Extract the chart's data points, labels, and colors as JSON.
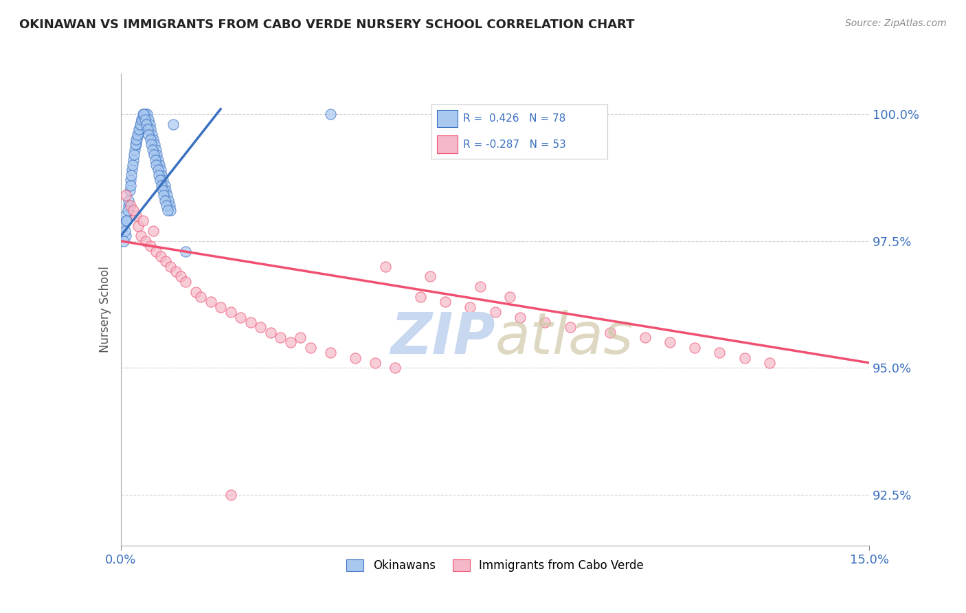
{
  "title": "OKINAWAN VS IMMIGRANTS FROM CABO VERDE NURSERY SCHOOL CORRELATION CHART",
  "source": "Source: ZipAtlas.com",
  "xlabel_okinawan": "Okinawans",
  "xlabel_cabo": "Immigrants from Cabo Verde",
  "ylabel": "Nursery School",
  "xlim": [
    0.0,
    15.0
  ],
  "ylim": [
    91.5,
    100.8
  ],
  "yticks": [
    92.5,
    95.0,
    97.5,
    100.0
  ],
  "r_okinawan": 0.426,
  "n_okinawan": 78,
  "r_cabo": -0.287,
  "n_cabo": 53,
  "color_okinawan": "#A8C8F0",
  "color_cabo": "#F5B8C8",
  "trend_color_okinawan": "#3A70C0",
  "trend_color_cabo": "#F05070",
  "background_color": "#FFFFFF",
  "grid_color": "#CCCCCC",
  "title_color": "#222222",
  "axis_label_color": "#555555",
  "legend_text_color": "#3A70C0",
  "watermark_color": "#C8D8F0",
  "okinawan_x": [
    0.05,
    0.08,
    0.1,
    0.12,
    0.15,
    0.18,
    0.2,
    0.22,
    0.25,
    0.28,
    0.3,
    0.32,
    0.35,
    0.38,
    0.4,
    0.42,
    0.45,
    0.48,
    0.5,
    0.52,
    0.55,
    0.58,
    0.6,
    0.62,
    0.65,
    0.68,
    0.7,
    0.72,
    0.75,
    0.78,
    0.8,
    0.82,
    0.85,
    0.88,
    0.9,
    0.92,
    0.95,
    0.98,
    1.0,
    1.05,
    0.06,
    0.09,
    0.11,
    0.14,
    0.16,
    0.19,
    0.21,
    0.24,
    0.26,
    0.29,
    0.31,
    0.34,
    0.36,
    0.39,
    0.41,
    0.44,
    0.46,
    0.49,
    0.51,
    0.54,
    0.56,
    0.59,
    0.61,
    0.64,
    0.66,
    0.69,
    0.71,
    0.74,
    0.76,
    0.79,
    0.81,
    0.84,
    0.86,
    0.89,
    0.91,
    0.94,
    4.2,
    1.3
  ],
  "okinawan_y": [
    97.8,
    98.0,
    97.6,
    97.9,
    98.2,
    98.5,
    98.7,
    98.9,
    99.1,
    99.3,
    99.4,
    99.5,
    99.6,
    99.7,
    99.8,
    99.9,
    99.9,
    100.0,
    100.0,
    100.0,
    99.9,
    99.8,
    99.7,
    99.6,
    99.5,
    99.4,
    99.3,
    99.2,
    99.1,
    99.0,
    98.9,
    98.8,
    98.7,
    98.6,
    98.5,
    98.4,
    98.3,
    98.2,
    98.1,
    99.8,
    97.5,
    97.7,
    97.9,
    98.1,
    98.3,
    98.6,
    98.8,
    99.0,
    99.2,
    99.4,
    99.5,
    99.6,
    99.7,
    99.8,
    99.9,
    100.0,
    100.0,
    99.9,
    99.8,
    99.7,
    99.6,
    99.5,
    99.4,
    99.3,
    99.2,
    99.1,
    99.0,
    98.9,
    98.8,
    98.7,
    98.6,
    98.5,
    98.4,
    98.3,
    98.2,
    98.1,
    100.0,
    97.3
  ],
  "cabo_x": [
    0.1,
    0.2,
    0.3,
    0.35,
    0.4,
    0.5,
    0.6,
    0.7,
    0.8,
    0.9,
    1.0,
    1.1,
    1.2,
    1.3,
    1.5,
    1.6,
    1.8,
    2.0,
    2.2,
    2.4,
    2.6,
    2.8,
    3.0,
    3.2,
    3.4,
    3.8,
    4.2,
    4.7,
    5.1,
    5.5,
    6.0,
    6.5,
    7.0,
    7.5,
    8.0,
    8.5,
    9.0,
    9.8,
    10.5,
    11.0,
    11.5,
    12.0,
    12.5,
    13.0,
    5.3,
    6.2,
    7.2,
    7.8,
    0.25,
    0.45,
    0.65,
    3.6,
    2.2
  ],
  "cabo_y": [
    98.4,
    98.2,
    98.0,
    97.8,
    97.6,
    97.5,
    97.4,
    97.3,
    97.2,
    97.1,
    97.0,
    96.9,
    96.8,
    96.7,
    96.5,
    96.4,
    96.3,
    96.2,
    96.1,
    96.0,
    95.9,
    95.8,
    95.7,
    95.6,
    95.5,
    95.4,
    95.3,
    95.2,
    95.1,
    95.0,
    96.4,
    96.3,
    96.2,
    96.1,
    96.0,
    95.9,
    95.8,
    95.7,
    95.6,
    95.5,
    95.4,
    95.3,
    95.2,
    95.1,
    97.0,
    96.8,
    96.6,
    96.4,
    98.1,
    97.9,
    97.7,
    95.6,
    92.5
  ],
  "trend_ok_x0": 0.0,
  "trend_ok_x1": 2.0,
  "trend_ok_y0": 97.6,
  "trend_ok_y1": 100.1,
  "trend_cabo_x0": 0.0,
  "trend_cabo_x1": 15.0,
  "trend_cabo_y0": 97.5,
  "trend_cabo_y1": 95.1
}
